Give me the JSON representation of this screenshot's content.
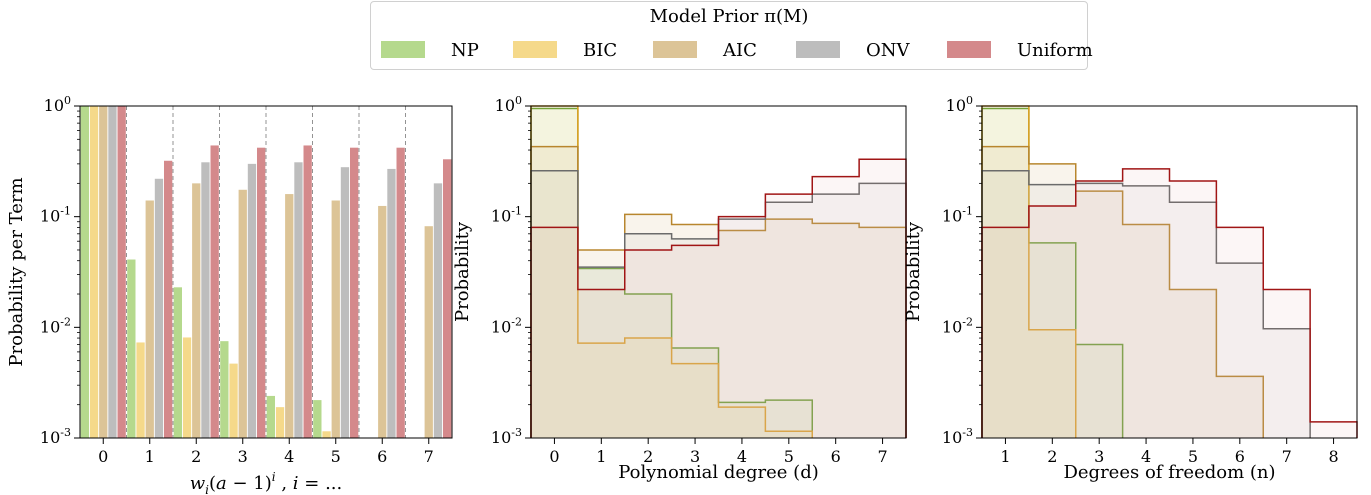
{
  "legend": {
    "title": "Model Prior π(M)",
    "items": [
      {
        "label": "NP",
        "fill": "#b5d98d",
        "line": "#5f9a2a"
      },
      {
        "label": "BIC",
        "fill": "#f5d98a",
        "line": "#e0a020"
      },
      {
        "label": "AIC",
        "fill": "#dcc497",
        "line": "#b8862e"
      },
      {
        "label": "ONV",
        "fill": "#bdbdbd",
        "line": "#6b6b6b"
      },
      {
        "label": "Uniform",
        "fill": "#d4898b",
        "line": "#a01515"
      }
    ]
  },
  "chart_data": [
    {
      "type": "bar",
      "scale": "log",
      "ylim": [
        0.001,
        1
      ],
      "xlabel": "w_i(a−1)^i , i = ...",
      "ylabel": "Probability per Term",
      "categories": [
        "0",
        "1",
        "2",
        "3",
        "4",
        "5",
        "6",
        "7"
      ],
      "separators": true,
      "series": [
        {
          "name": "NP",
          "values": [
            1.0,
            0.041,
            0.023,
            0.0075,
            0.0024,
            0.0022,
            null,
            null
          ]
        },
        {
          "name": "BIC",
          "values": [
            1.0,
            0.0073,
            0.0081,
            0.0047,
            0.0019,
            0.00115,
            null,
            null
          ]
        },
        {
          "name": "AIC",
          "values": [
            1.0,
            0.14,
            0.2,
            0.175,
            0.16,
            0.14,
            0.125,
            0.082
          ]
        },
        {
          "name": "ONV",
          "values": [
            1.0,
            0.22,
            0.31,
            0.3,
            0.31,
            0.28,
            0.27,
            0.2
          ]
        },
        {
          "name": "Uniform",
          "values": [
            1.0,
            0.32,
            0.44,
            0.42,
            0.44,
            0.42,
            0.42,
            0.33
          ]
        }
      ]
    },
    {
      "type": "area",
      "scale": "log",
      "ylim": [
        0.001,
        1
      ],
      "xlim": [
        -0.5,
        7.5
      ],
      "xlabel": "Polynomial degree (d)",
      "ylabel": "Probability",
      "ticks": [
        "0",
        "1",
        "2",
        "3",
        "4",
        "5",
        "6",
        "7"
      ],
      "x": [
        0,
        1,
        2,
        3,
        4,
        5,
        6,
        7
      ],
      "series": [
        {
          "name": "NP",
          "values": [
            0.95,
            0.034,
            0.02,
            0.0065,
            0.0021,
            0.0022,
            null,
            null
          ]
        },
        {
          "name": "BIC",
          "values": [
            1.0,
            0.0072,
            0.008,
            0.0047,
            0.0019,
            0.00115,
            null,
            null
          ]
        },
        {
          "name": "AIC",
          "values": [
            0.43,
            0.05,
            0.105,
            0.085,
            0.075,
            0.095,
            0.087,
            0.08
          ]
        },
        {
          "name": "ONV",
          "values": [
            0.26,
            0.035,
            0.07,
            0.063,
            0.095,
            0.135,
            0.16,
            0.2
          ]
        },
        {
          "name": "Uniform",
          "values": [
            0.08,
            0.022,
            0.05,
            0.055,
            0.1,
            0.16,
            0.23,
            0.33
          ]
        }
      ]
    },
    {
      "type": "area",
      "scale": "log",
      "ylim": [
        0.001,
        1
      ],
      "xlim": [
        0.5,
        8.5
      ],
      "xlabel": "Degrees of freedom (n)",
      "ylabel": "Probability",
      "ticks": [
        "1",
        "2",
        "3",
        "4",
        "5",
        "6",
        "7",
        "8"
      ],
      "x": [
        1,
        2,
        3,
        4,
        5,
        6,
        7,
        8
      ],
      "series": [
        {
          "name": "NP",
          "values": [
            0.95,
            0.058,
            0.007,
            null,
            null,
            null,
            null,
            null
          ]
        },
        {
          "name": "BIC",
          "values": [
            1.0,
            0.0095,
            null,
            null,
            null,
            null,
            null,
            null
          ]
        },
        {
          "name": "AIC",
          "values": [
            0.43,
            0.3,
            0.17,
            0.085,
            0.022,
            0.0036,
            null,
            null
          ]
        },
        {
          "name": "ONV",
          "values": [
            0.26,
            0.195,
            0.2,
            0.19,
            0.135,
            0.038,
            0.0097,
            null
          ]
        },
        {
          "name": "Uniform",
          "values": [
            0.08,
            0.125,
            0.21,
            0.27,
            0.21,
            0.08,
            0.022,
            0.0014
          ]
        }
      ]
    }
  ]
}
